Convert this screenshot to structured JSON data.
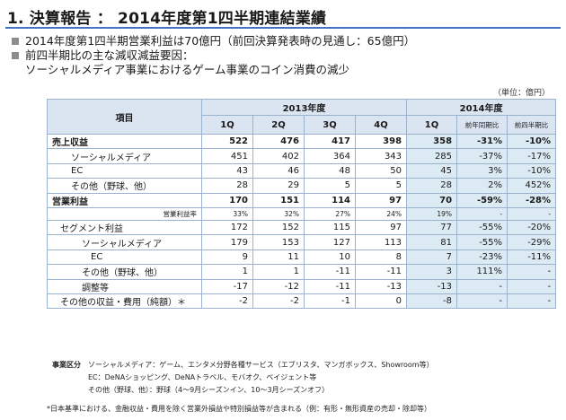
{
  "header": {
    "title": "1. 決算報告 ： 2014年度第1四半期連結業績"
  },
  "bullets": [
    "2014年度第1四半期営業利益は70億円（前回決算発表時の見通し：65億円）",
    "前四半期比の主な減収減益要因："
  ],
  "bullet_sub": "ソーシャルメディア事業におけるゲーム事業のコイン消費の減少",
  "unit": "（単位：億円）",
  "table": {
    "head": {
      "item": "項目",
      "fy2013": "2013年度",
      "fy2014": "2014年度",
      "q": [
        "1Q",
        "2Q",
        "3Q",
        "4Q",
        "1Q"
      ],
      "yoy": "前年同期比",
      "qoq": "前四半期比"
    },
    "rows": [
      {
        "label": "売上収益",
        "v": [
          "522",
          "476",
          "417",
          "398",
          "358",
          "-31%",
          "-10%"
        ]
      },
      {
        "label": "ソーシャルメディア",
        "v": [
          "451",
          "402",
          "364",
          "343",
          "285",
          "-37%",
          "-17%"
        ]
      },
      {
        "label": "EC",
        "v": [
          "43",
          "46",
          "48",
          "50",
          "45",
          "3%",
          "-10%"
        ]
      },
      {
        "label": "その他（野球、他）",
        "v": [
          "28",
          "29",
          "5",
          "5",
          "28",
          "2%",
          "452%"
        ]
      },
      {
        "label": "営業利益",
        "v": [
          "170",
          "151",
          "114",
          "97",
          "70",
          "-59%",
          "-28%"
        ]
      },
      {
        "label": "営業利益率",
        "v": [
          "33%",
          "32%",
          "27%",
          "24%",
          "19%",
          "-",
          "-"
        ]
      },
      {
        "label": "セグメント利益",
        "v": [
          "172",
          "152",
          "115",
          "97",
          "77",
          "-55%",
          "-20%"
        ]
      },
      {
        "label": "ソーシャルメディア",
        "v": [
          "179",
          "153",
          "127",
          "113",
          "81",
          "-55%",
          "-29%"
        ]
      },
      {
        "label": "EC",
        "v": [
          "9",
          "11",
          "10",
          "8",
          "7",
          "-23%",
          "-11%"
        ]
      },
      {
        "label": "その他（野球、他）",
        "v": [
          "1",
          "1",
          "-11",
          "-11",
          "3",
          "111%",
          "-"
        ]
      },
      {
        "label": "調整等",
        "v": [
          "-17",
          "-12",
          "-11",
          "-13",
          "-13",
          "-",
          "-"
        ]
      },
      {
        "label": "その他の収益・費用（純額）＊",
        "v": [
          "-2",
          "-2",
          "-1",
          "0",
          "-8",
          "-",
          "-"
        ]
      }
    ]
  },
  "notes": {
    "key": "事業区分",
    "lines": [
      "ソーシャルメディア：ゲーム、エンタメ分野各種サービス（エブリスタ、マンガボックス、Showroom等）",
      "EC：DeNAショッピング、DeNAトラベル、モバオク、ペイジェント等",
      "その他（野球、他）：野球（4～9月シーズンイン、10～3月シーズンオフ）"
    ]
  },
  "footnote": "*日本基準における、金融収益・費用を除く営業外損益や特別損益等が含まれる（例：有形・無形資産の売却・除却等）"
}
